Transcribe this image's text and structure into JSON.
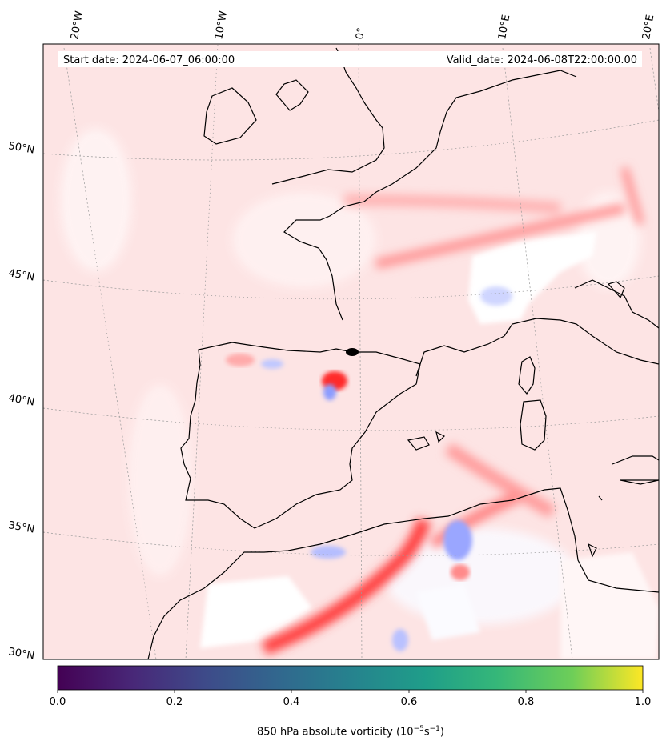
{
  "title_left": "Start date: 2024-06-07_06:00:00",
  "title_right": "Valid_date: 2024-06-08T22:00:00.00",
  "lon_labels": [
    "20°W",
    "10°W",
    "0°",
    "10°E",
    "20°E"
  ],
  "lat_labels": [
    "50°N",
    "45°N",
    "40°N",
    "35°N",
    "30°N"
  ],
  "colorbar": {
    "ticks": [
      "0.0",
      "0.2",
      "0.4",
      "0.6",
      "0.8",
      "1.0"
    ],
    "label_prefix": "850 hPa absolute vorticity (10",
    "label_exp1": "−5",
    "label_mid": "s",
    "label_exp2": "−1",
    "label_suffix": ")",
    "colormap": "viridis"
  },
  "colors": {
    "field_base": "#fde4e4",
    "positive": "#ff3030",
    "negative": "#9ba8ff",
    "coast": "#000000"
  }
}
